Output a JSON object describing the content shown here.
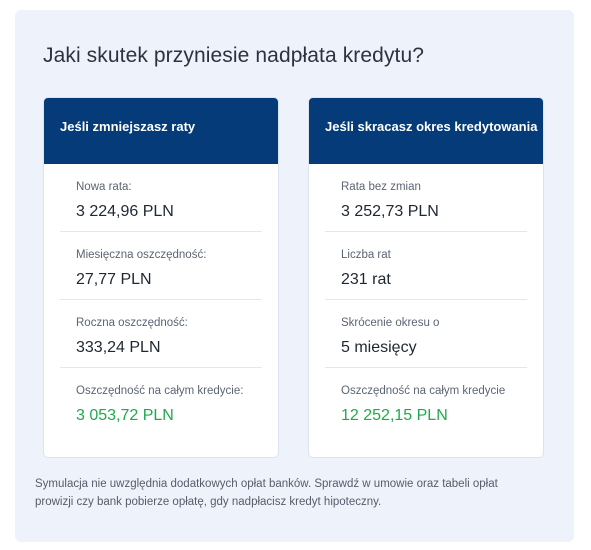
{
  "title": "Jaki skutek przyniesie nadpłata kredytu?",
  "cards": [
    {
      "header": "Jeśli zmniejszasz raty",
      "rows": [
        {
          "label": "Nowa rata:",
          "value": "3 224,96 PLN"
        },
        {
          "label": "Miesięczna oszczędność:",
          "value": "27,77 PLN"
        },
        {
          "label": "Roczna oszczędność:",
          "value": "333,24 PLN"
        },
        {
          "label": "Oszczędność na całym kredycie:",
          "value": "3 053,72 PLN"
        }
      ]
    },
    {
      "header": "Jeśli skracasz okres kredytowania",
      "rows": [
        {
          "label": "Rata bez zmian",
          "value": "3 252,73 PLN"
        },
        {
          "label": "Liczba rat",
          "value": "231 rat"
        },
        {
          "label": "Skrócenie okresu o",
          "value": "5 miesięcy"
        },
        {
          "label": "Oszczędność na całym kredycie",
          "value": "12 252,15 PLN"
        }
      ]
    }
  ],
  "footnote": "Symulacja nie uwzględnia dodatkowych opłat banków. Sprawdź w umowie oraz tabeli opłat prowizji czy bank pobierze opłatę, gdy nadpłacisz kredyt hipoteczny.",
  "colors": {
    "header_bg": "#043b78",
    "panel_bg": "#eef3fb",
    "highlight_green": "#1faa4a"
  }
}
